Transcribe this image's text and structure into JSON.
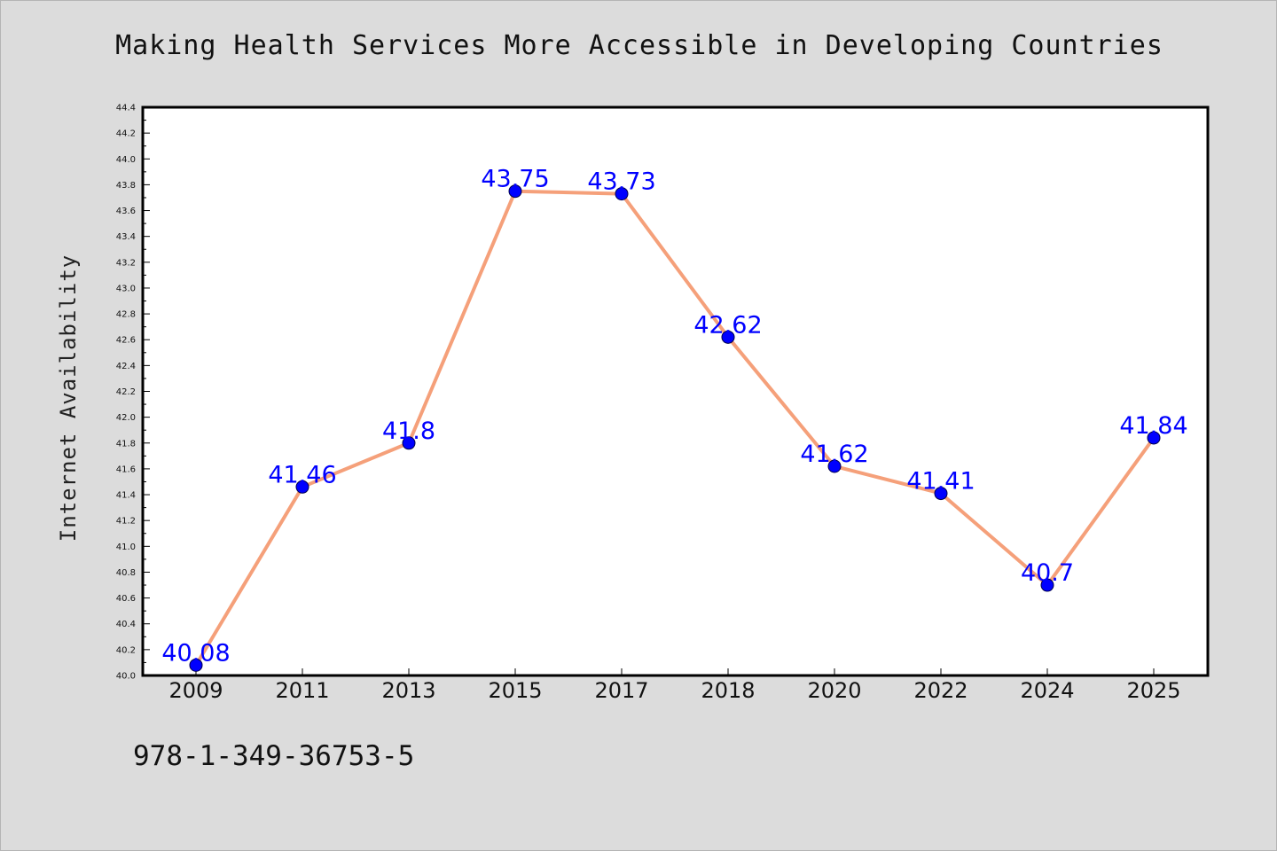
{
  "colors": {
    "background": "#dcdcdc",
    "plot_background": "#ffffff",
    "line": "#f5a07a",
    "marker": "#0000ff",
    "data_label": "#0000ff"
  },
  "footer": {
    "isbn": "978-1-349-36753-5"
  },
  "chart_data": {
    "type": "line",
    "title": "Making Health Services More Accessible in Developing Countries",
    "xlabel": "",
    "ylabel": "Internet Availability",
    "categories": [
      "2009",
      "2011",
      "2013",
      "2015",
      "2017",
      "2018",
      "2020",
      "2022",
      "2024",
      "2025"
    ],
    "series": [
      {
        "values": [
          40.08,
          41.46,
          41.8,
          43.75,
          43.73,
          42.62,
          41.62,
          41.41,
          40.7,
          41.84
        ],
        "labels": [
          "40.08",
          "41.46",
          "41.8",
          "43.75",
          "43.73",
          "42.62",
          "41.62",
          "41.41",
          "40.7",
          "41.84"
        ]
      }
    ],
    "ylim": [
      40.0,
      44.4
    ],
    "yticks": [
      "40.0",
      "40.2",
      "40.4",
      "40.6",
      "40.8",
      "41.0",
      "41.2",
      "41.4",
      "41.6",
      "41.8",
      "42.0",
      "42.2",
      "42.4",
      "42.6",
      "42.8",
      "43.0",
      "43.2",
      "43.4",
      "43.6",
      "43.8",
      "44.0",
      "44.2",
      "44.4"
    ],
    "grid": false,
    "legend": "none"
  }
}
